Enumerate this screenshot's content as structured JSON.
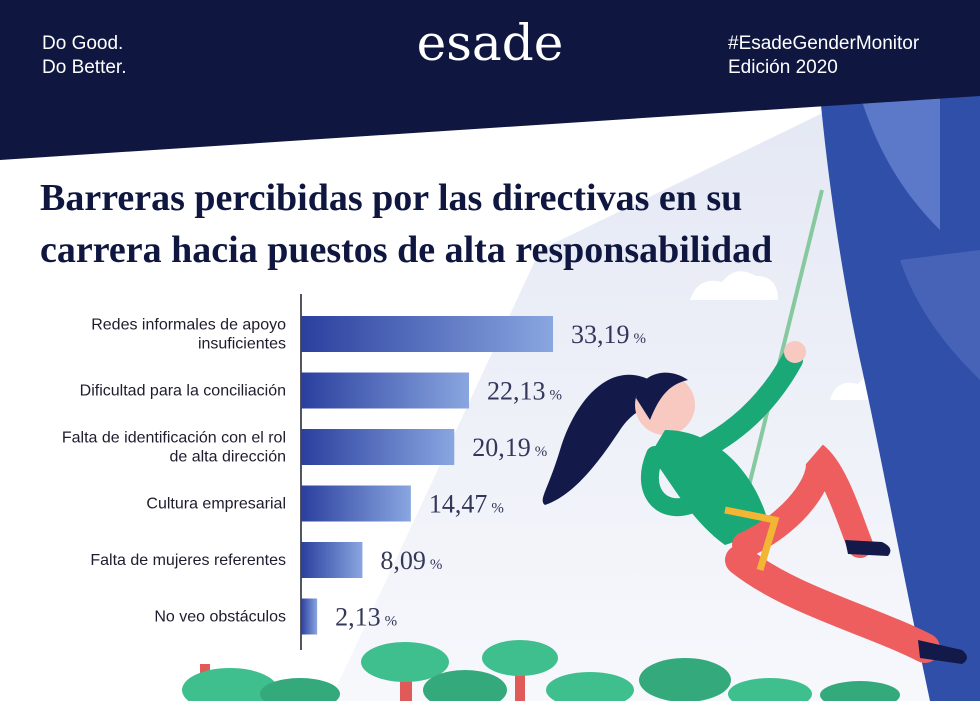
{
  "header": {
    "tagline": "Do Good.\nDo Better.",
    "logo": "esade",
    "hashtag": "#EsadeGenderMonitor\nEdición 2020"
  },
  "colors": {
    "navy": "#0f1740",
    "bar_dark": "#2a3f9e",
    "bar_light": "#8aa6e0",
    "curtain": "#2f4fa8",
    "skin": "#f7c9c0",
    "sweater": "#1aa877",
    "pants": "#ee5e5e",
    "harness": "#f2b534",
    "trees": "#3fbf8e",
    "trunks": "#e05a5a"
  },
  "chart_data": {
    "type": "bar",
    "orientation": "horizontal",
    "title": "Barreras percibidas por las directivas en su carrera hacia puestos de alta responsabilidad",
    "categories": [
      [
        "Redes informales de apoyo",
        "insuficientes"
      ],
      [
        "Dificultad para la conciliación"
      ],
      [
        "Falta de identificación con el rol",
        "de alta dirección"
      ],
      [
        "Cultura empresarial"
      ],
      [
        "Falta de mujeres referentes"
      ],
      [
        "No veo obstáculos"
      ]
    ],
    "values": [
      33.19,
      22.13,
      20.19,
      14.47,
      8.09,
      2.13
    ],
    "value_labels": [
      "33,19",
      "22,13",
      "20,19",
      "14,47",
      "8,09",
      "2,13"
    ],
    "unit": "%",
    "xlim": [
      0,
      35
    ],
    "grid": false,
    "legend": "none"
  }
}
